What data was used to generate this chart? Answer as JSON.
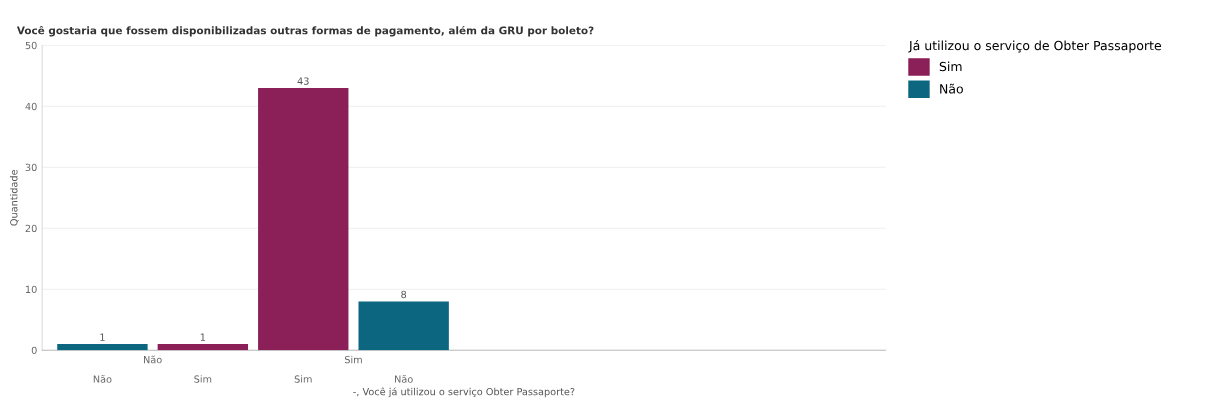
{
  "chart_data": {
    "type": "bar",
    "title": "Você gostaria que fossem disponibilizadas outras formas de pagamento, além da GRU por boleto?",
    "xlabel": "-, Você já utilizou o serviço Obter Passaporte?",
    "ylabel": "Quantidade",
    "legend_title": "Já utilizou o serviço de Obter Passaporte",
    "categories": [
      "Não",
      "Sim",
      "Sim",
      "Não"
    ],
    "annotations": [
      "Não",
      "Sim"
    ],
    "series": [
      {
        "name": "Sim",
        "color": "#8b1f57",
        "values": [
          null,
          1,
          43,
          null
        ]
      },
      {
        "name": "Não",
        "color": "#0d6680",
        "values": [
          1,
          null,
          null,
          8
        ]
      }
    ],
    "ylim": [
      0,
      50
    ],
    "yticks": [
      0,
      10,
      20,
      30,
      40,
      50
    ],
    "grid": "y",
    "legend": "right",
    "data_labels": true
  }
}
